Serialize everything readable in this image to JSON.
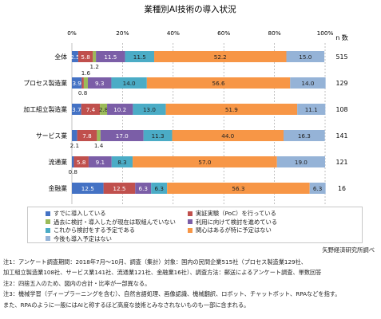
{
  "chart_data": {
    "type": "bar",
    "orientation": "horizontal",
    "stacked": true,
    "percent": true,
    "title": "業種別AI技術の導入状況",
    "x_ticks": [
      "0%",
      "20%",
      "40%",
      "60%",
      "80%",
      "100%"
    ],
    "xlim": [
      0,
      100
    ],
    "n_label": "n 数",
    "categories": [
      "全体",
      "プロセス製造業",
      "加工組立製造業",
      "サービス業",
      "流通業",
      "金融業"
    ],
    "n_values": [
      "515",
      "129",
      "108",
      "141",
      "121",
      "16"
    ],
    "series": [
      {
        "name": "すでに導入している",
        "color": "#4472c4",
        "values": [
          2.5,
          3.9,
          3.7,
          2.1,
          0.8,
          12.5
        ]
      },
      {
        "name": "実証実験（PoC）を行っている",
        "color": "#c0504d",
        "values": [
          5.8,
          0.8,
          7.4,
          7.8,
          5.8,
          12.5
        ]
      },
      {
        "name": "過去に検討・導入したが現在は取組んでいない",
        "color": "#9bbb59",
        "values": [
          1.2,
          1.6,
          2.8,
          1.4,
          0.0,
          0.0
        ]
      },
      {
        "name": "利用に向けて検討を進めている",
        "color": "#7b5ea7",
        "values": [
          11.5,
          9.3,
          10.2,
          17.0,
          9.1,
          6.3
        ]
      },
      {
        "name": "これから検討をする予定である",
        "color": "#4bacc6",
        "values": [
          11.5,
          14.0,
          13.0,
          11.3,
          8.3,
          6.3
        ]
      },
      {
        "name": "関心はあるが特に予定はない",
        "color": "#f79646",
        "values": [
          52.2,
          56.6,
          51.9,
          44.0,
          57.0,
          56.3
        ]
      },
      {
        "name": "今後も導入予定はない",
        "color": "#95b3d7",
        "values": [
          15.0,
          14.0,
          11.1,
          16.3,
          19.0,
          6.3
        ]
      }
    ],
    "label_positions": {
      "全体": [
        "in",
        "in",
        "below",
        "in",
        "in",
        "in",
        "in"
      ],
      "プロセス製造業": [
        "in",
        "below",
        "above",
        "in",
        "in",
        "in",
        "in"
      ],
      "加工組立製造業": [
        "in",
        "in",
        "in",
        "in",
        "in",
        "in",
        "in"
      ],
      "サービス業": [
        "below",
        "in",
        "below",
        "in",
        "in",
        "in",
        "in"
      ],
      "流通業": [
        "below",
        "in",
        "none",
        "in",
        "in",
        "in",
        "in"
      ],
      "金融業": [
        "in",
        "in",
        "none",
        "in",
        "in",
        "in",
        "in"
      ]
    },
    "grid": "vertical dashed",
    "legend_position": "bottom"
  },
  "source": "矢野経済研究所調べ",
  "notes": [
    "注1：アンケート調査期間：2018年7月～10月、調査（集計）対象：国内の民間企業515社（プロセス製造業129社、",
    "加工組立製造業108社、サービス業141社、流通業121社、金融業16社）、調査方法：郵送によるアンケート調査、単数回答",
    "注2：四捨五入のため、図内の合計・比率が一部異なる。",
    "注3：機械学習（ディープラーニングを含む）、自然言語処理、画像認識、機械翻訳、ロボット、チャットボット、RPAなどを指す。",
    "また、RPAのように一般にはAIと称するほど高度な技術とみなされないものも一部に含まれる。"
  ]
}
